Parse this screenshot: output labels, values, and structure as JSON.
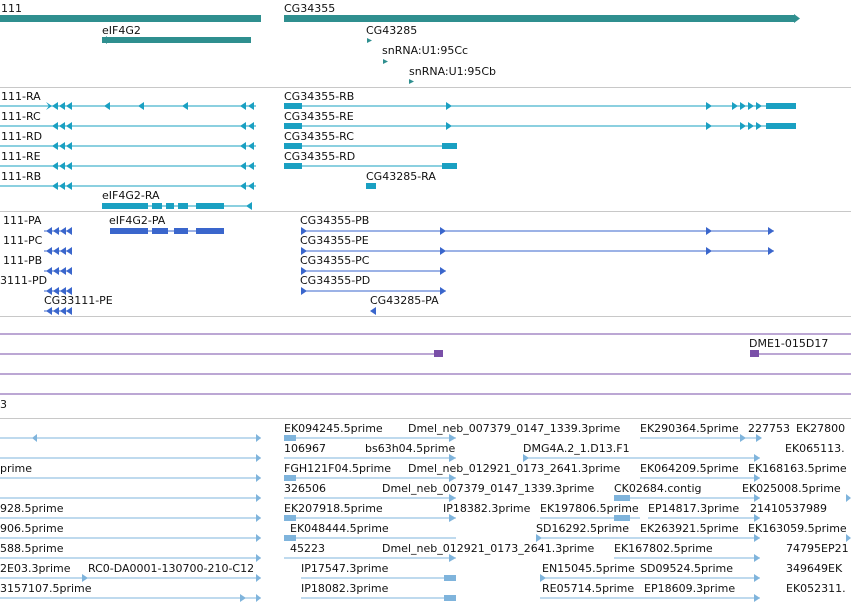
{
  "colors": {
    "gene": "#2f8f8f",
    "transcript": "#1aa0c2",
    "protein": "#3a66cc",
    "clone": "#7a4fa8",
    "est": "#7fb4dc",
    "divider": "#c8c8c8"
  },
  "genes": {
    "labels": [
      "111",
      "eIF4G2",
      "CG34355",
      "CG43285",
      "snRNA:U1:95Cc",
      "snRNA:U1:95Cb"
    ]
  },
  "transcripts": {
    "labels": [
      "111-RA",
      "111-RC",
      "111-RD",
      "111-RE",
      "111-RB",
      "eIF4G2-RA",
      "CG34355-RB",
      "CG34355-RE",
      "CG34355-RC",
      "CG34355-RD",
      "CG43285-RA"
    ]
  },
  "proteins": {
    "labels": [
      "111-PA",
      "eIF4G2-PA",
      "111-PC",
      "111-PB",
      "3111-PD",
      "CG33111-PE",
      "CG34355-PB",
      "CG34355-PE",
      "CG34355-PC",
      "CG34355-PD",
      "CG43285-PA"
    ]
  },
  "clones": {
    "labels": [
      "DME1-015D17"
    ]
  },
  "section_label": "3",
  "ests": {
    "labels": [
      "EK094245.5prime",
      "Dmel_neb_007379_0147_1339.3prime",
      "EK290364.5prime",
      "227753",
      "EK27800",
      "106967",
      "bs63h04.5prime",
      "DMG4A.2_1.D13.F1",
      "EK065113.",
      "prime",
      "FGH121F04.5prime",
      "Dmel_neb_012921_0173_2641.3prime",
      "EK064209.5prime",
      "EK168163.5prime",
      "326506",
      "Dmel_neb_007379_0147_1339.3prime",
      "CK02684.contig",
      "EK025008.5prime",
      "928.5prime",
      "EK207918.5prime",
      "IP18382.3prime",
      "EK197806.5prime",
      "EP14817.3prime",
      "21410537989",
      "906.5prime",
      "EK048444.5prime",
      "SD16292.5prime",
      "EK263921.5prime",
      "EK163059.5prime",
      "588.5prime",
      "45223",
      "Dmel_neb_012921_0173_2641.3prime",
      "EK167802.5prime",
      "74795EP21",
      "2E03.3prime",
      "RC0-DA0001-130700-210-C12",
      "IP17547.3prime",
      "EN15045.5prime",
      "SD09524.5prime",
      "349649EK",
      "3157107.5prime",
      "IP18082.3prime",
      "RE05714.5prime",
      "EP18609.3prime",
      "EK052311."
    ]
  }
}
